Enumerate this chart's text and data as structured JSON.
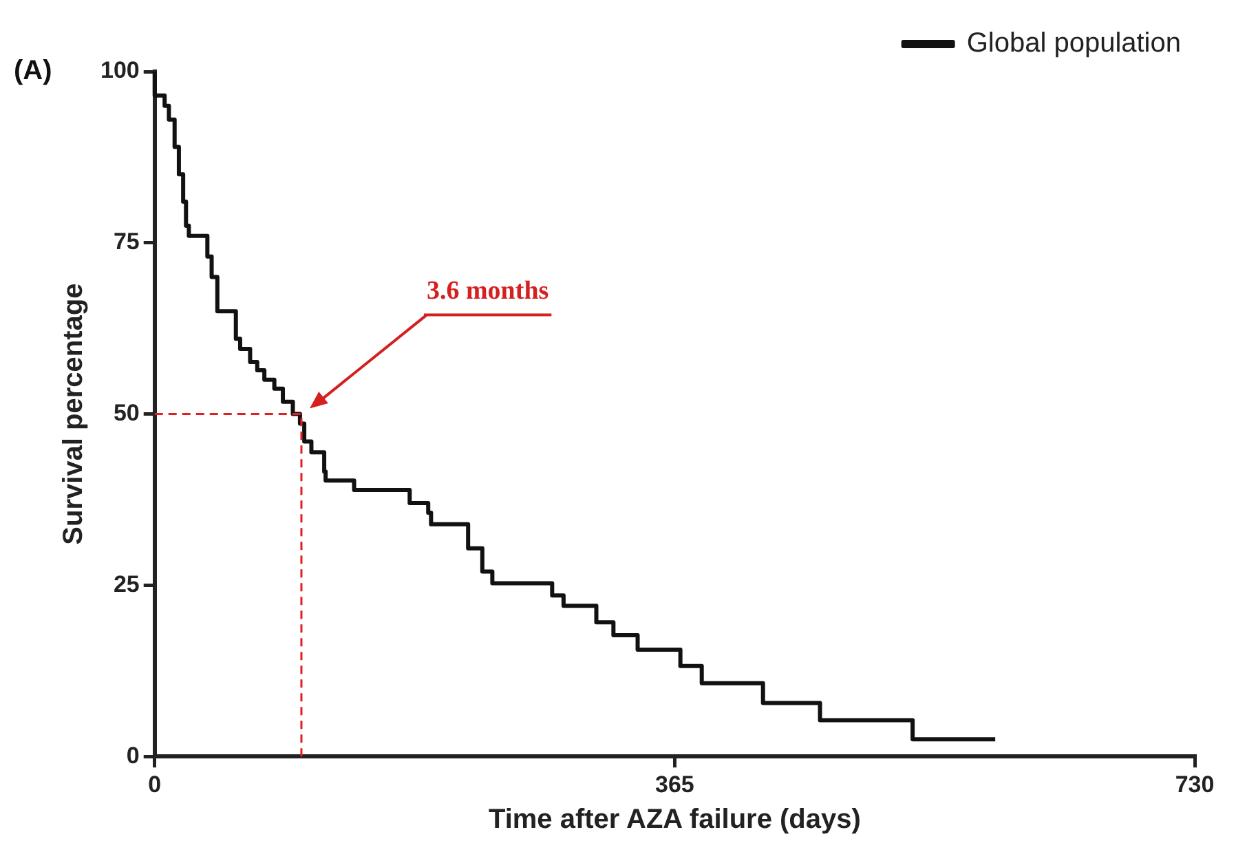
{
  "chart_data": {
    "type": "step",
    "xlabel": "Time after AZA failure (days)",
    "ylabel": "Survival percentage",
    "xlim": [
      0,
      730
    ],
    "xticks": [
      0,
      365,
      730
    ],
    "ylim": [
      0,
      100
    ],
    "yticks": [
      0,
      25,
      50,
      75,
      100
    ],
    "grid": false,
    "legend": "top right",
    "series": [
      {
        "name": "Global population",
        "color": "#111111",
        "x": [
          0,
          7,
          10,
          14,
          17,
          20,
          22,
          24,
          37,
          40,
          44,
          57,
          60,
          67,
          72,
          77,
          84,
          90,
          97,
          102,
          105,
          110,
          119,
          120,
          140,
          179,
          192,
          194,
          220,
          230,
          237,
          279,
          287,
          310,
          322,
          339,
          369,
          384,
          427,
          467,
          532,
          590
        ],
        "values": [
          100,
          96.5,
          95,
          93,
          89,
          85,
          81,
          77.5,
          76,
          73,
          70,
          65,
          61,
          59.5,
          57.6,
          56.4,
          55,
          53.7,
          51.8,
          50,
          48.6,
          46,
          44.4,
          41.6,
          40.3,
          38.9,
          37,
          35.6,
          33.9,
          30.4,
          27,
          25.3,
          23.5,
          22,
          19.6,
          17.7,
          15.6,
          13.2,
          10.7,
          7.8,
          5.3,
          2.5
        ]
      }
    ],
    "ref_lines": [
      {
        "axis": "y",
        "value": 50,
        "color": "#e0201e",
        "line_style": "dashed"
      },
      {
        "axis": "x",
        "value": 103,
        "color": "#e0201e",
        "line_style": "dashed"
      }
    ],
    "annotations": [
      "(A)",
      "3.6 months"
    ]
  }
}
